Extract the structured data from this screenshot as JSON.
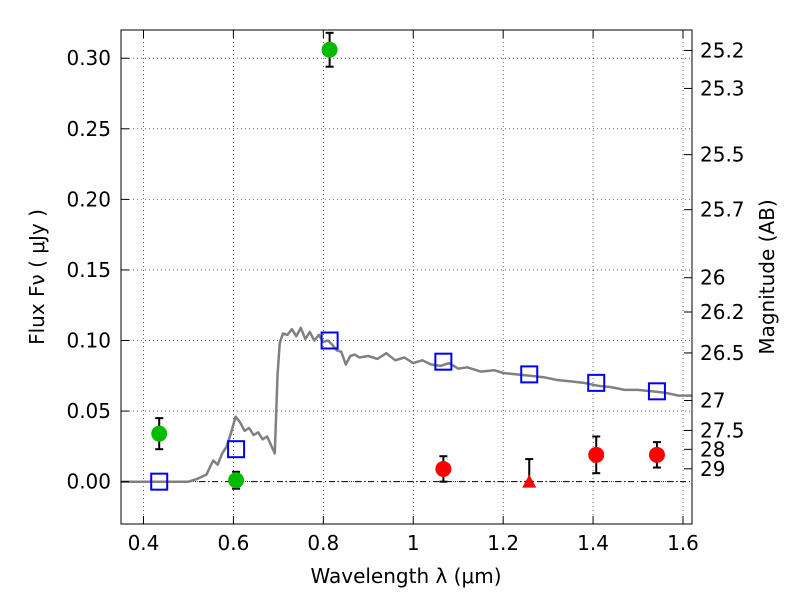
{
  "chart_data": {
    "type": "scatter",
    "title": "",
    "xlabel": "Wavelength  λ (μm)",
    "ylabel": "Flux  Fν  ( μJy )",
    "ylabel_right": "Magnitude (AB)",
    "xlim": [
      0.35,
      1.62
    ],
    "ylim": [
      -0.03,
      0.32
    ],
    "grid": true,
    "x_ticks": [
      {
        "value": 0.4,
        "label": "0.4"
      },
      {
        "value": 0.6,
        "label": "0.6"
      },
      {
        "value": 0.8,
        "label": "0.8"
      },
      {
        "value": 1.0,
        "label": "1"
      },
      {
        "value": 1.2,
        "label": "1.2"
      },
      {
        "value": 1.4,
        "label": "1.4"
      },
      {
        "value": 1.6,
        "label": "1.6"
      }
    ],
    "y_ticks": [
      {
        "value": 0.0,
        "label": "0.00"
      },
      {
        "value": 0.05,
        "label": "0.05"
      },
      {
        "value": 0.1,
        "label": "0.10"
      },
      {
        "value": 0.15,
        "label": "0.15"
      },
      {
        "value": 0.2,
        "label": "0.20"
      },
      {
        "value": 0.25,
        "label": "0.25"
      },
      {
        "value": 0.3,
        "label": "0.30"
      }
    ],
    "right_ticks": [
      {
        "flux": 0.3055,
        "label": "25.2"
      },
      {
        "flux": 0.2786,
        "label": "25.3"
      },
      {
        "flux": 0.2317,
        "label": "25.5"
      },
      {
        "flux": 0.1927,
        "label": "25.7"
      },
      {
        "flux": 0.1445,
        "label": "26"
      },
      {
        "flux": 0.1202,
        "label": "26.2"
      },
      {
        "flux": 0.0912,
        "label": "26.5"
      },
      {
        "flux": 0.0575,
        "label": "27"
      },
      {
        "flux": 0.0363,
        "label": "27.5"
      },
      {
        "flux": 0.0229,
        "label": "28"
      },
      {
        "flux": 0.0091,
        "label": "29"
      }
    ],
    "model_spectrum": {
      "color": "#808080",
      "x": [
        0.35,
        0.4,
        0.45,
        0.5,
        0.52,
        0.54,
        0.555,
        0.565,
        0.575,
        0.585,
        0.595,
        0.605,
        0.615,
        0.625,
        0.635,
        0.645,
        0.655,
        0.665,
        0.675,
        0.685,
        0.692,
        0.698,
        0.703,
        0.71,
        0.72,
        0.73,
        0.74,
        0.75,
        0.76,
        0.77,
        0.78,
        0.79,
        0.8,
        0.81,
        0.82,
        0.83,
        0.84,
        0.85,
        0.86,
        0.87,
        0.88,
        0.9,
        0.92,
        0.94,
        0.96,
        0.98,
        1.0,
        1.02,
        1.04,
        1.06,
        1.08,
        1.1,
        1.12,
        1.15,
        1.18,
        1.2,
        1.23,
        1.26,
        1.29,
        1.32,
        1.35,
        1.38,
        1.41,
        1.44,
        1.47,
        1.5,
        1.53,
        1.56,
        1.59,
        1.62
      ],
      "y": [
        0.0,
        0.0,
        0.0,
        0.0,
        0.002,
        0.005,
        0.015,
        0.012,
        0.02,
        0.025,
        0.035,
        0.046,
        0.042,
        0.036,
        0.038,
        0.033,
        0.035,
        0.03,
        0.032,
        0.025,
        0.02,
        0.075,
        0.098,
        0.105,
        0.104,
        0.108,
        0.103,
        0.109,
        0.101,
        0.106,
        0.1,
        0.104,
        0.099,
        0.1,
        0.097,
        0.093,
        0.092,
        0.083,
        0.089,
        0.09,
        0.088,
        0.089,
        0.087,
        0.091,
        0.086,
        0.088,
        0.084,
        0.086,
        0.083,
        0.082,
        0.084,
        0.08,
        0.081,
        0.078,
        0.079,
        0.077,
        0.076,
        0.075,
        0.074,
        0.072,
        0.071,
        0.07,
        0.068,
        0.067,
        0.065,
        0.065,
        0.064,
        0.063,
        0.061,
        0.061
      ]
    },
    "series": [
      {
        "marker": "circle",
        "color": "#00bb00",
        "filled": true,
        "points": [
          {
            "x": 0.435,
            "y": 0.034,
            "err": 0.011
          },
          {
            "x": 0.606,
            "y": 0.001,
            "err": 0.006
          },
          {
            "x": 0.814,
            "y": 0.306,
            "err": 0.012
          }
        ]
      },
      {
        "marker": "circle",
        "color": "#ff0000",
        "filled": true,
        "points": [
          {
            "x": 1.067,
            "y": 0.009,
            "err": 0.009
          },
          {
            "x": 1.407,
            "y": 0.019,
            "err": 0.013
          },
          {
            "x": 1.542,
            "y": 0.019,
            "err": 0.009
          }
        ]
      },
      {
        "marker": "triangle",
        "color": "#ff0000",
        "filled": true,
        "points": [
          {
            "x": 1.258,
            "y": 0.0,
            "err_low": 0.0,
            "err_high": 0.016
          }
        ]
      },
      {
        "marker": "square",
        "color": "#0000ee",
        "filled": false,
        "points": [
          {
            "x": 0.435,
            "y": 0.0
          },
          {
            "x": 0.606,
            "y": 0.023
          },
          {
            "x": 0.814,
            "y": 0.1
          },
          {
            "x": 1.067,
            "y": 0.085
          },
          {
            "x": 1.258,
            "y": 0.076
          },
          {
            "x": 1.407,
            "y": 0.07
          },
          {
            "x": 1.542,
            "y": 0.064
          }
        ]
      }
    ],
    "zero_line": {
      "y": 0.0,
      "style": "dash-dot",
      "color": "#000000"
    }
  }
}
